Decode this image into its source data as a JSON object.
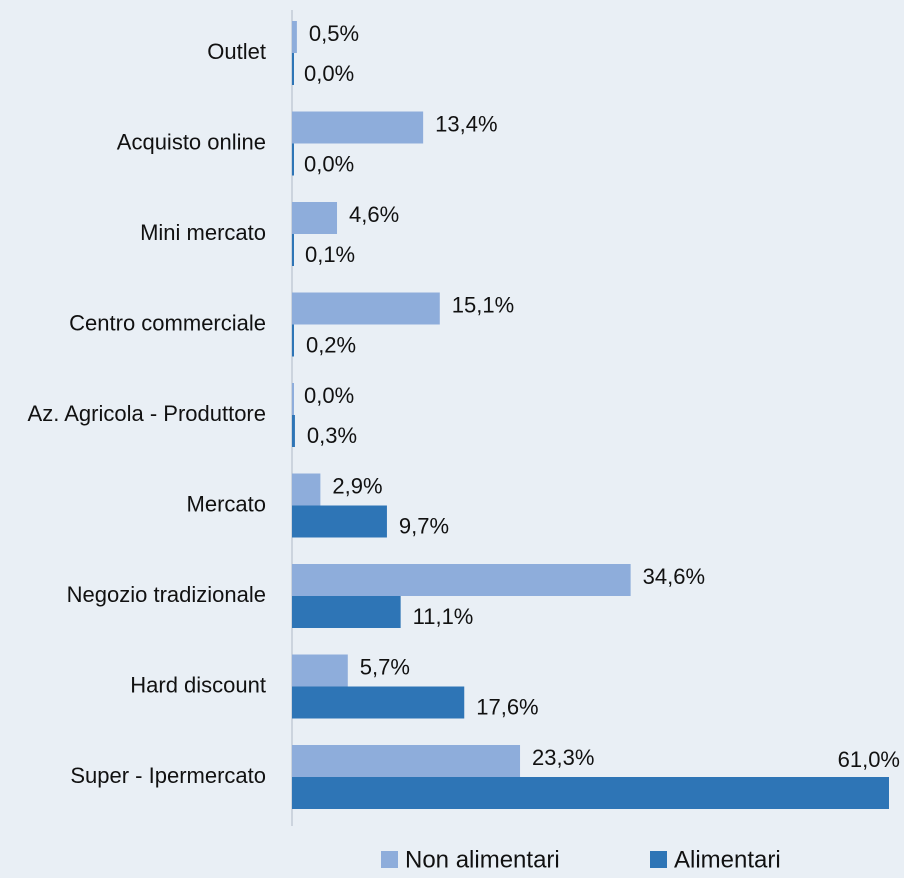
{
  "chart_data": {
    "type": "barh",
    "categories": [
      "Outlet",
      "Acquisto online",
      "Mini mercato",
      "Centro commerciale",
      "Az. Agricola - Produttore",
      "Mercato",
      "Negozio tradizionale",
      "Hard discount",
      "Super - Ipermercato"
    ],
    "series": [
      {
        "name": "Non alimentari",
        "color": "#8eaddb",
        "values": [
          0.5,
          13.4,
          4.6,
          15.1,
          0.0,
          2.9,
          34.6,
          5.7,
          23.3
        ],
        "value_labels": [
          "0,5%",
          "13,4%",
          "4,6%",
          "15,1%",
          "0,0%",
          "2,9%",
          "34,6%",
          "5,7%",
          "23,3%"
        ]
      },
      {
        "name": "Alimentari",
        "color": "#2e75b6",
        "values": [
          0.0,
          0.0,
          0.1,
          0.2,
          0.3,
          9.7,
          11.1,
          17.6,
          61.0
        ],
        "value_labels": [
          "0,0%",
          "0,0%",
          "0,1%",
          "0,2%",
          "0,3%",
          "9,7%",
          "11,1%",
          "17,6%",
          "61,0%"
        ]
      }
    ],
    "xlim": [
      0,
      61.0
    ],
    "legend": "bottom"
  }
}
